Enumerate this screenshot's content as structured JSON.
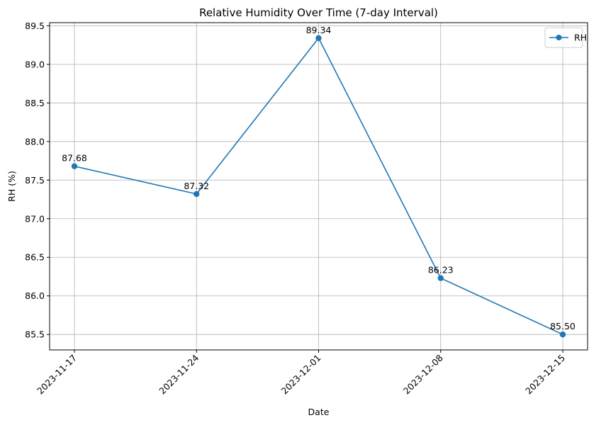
{
  "chart_data": {
    "type": "line",
    "title": "Relative Humidity Over Time (7-day Interval)",
    "xlabel": "Date",
    "ylabel": "RH (%)",
    "x": [
      "2023-11-17",
      "2023-11-24",
      "2023-12-01",
      "2023-12-08",
      "2023-12-15"
    ],
    "series": [
      {
        "name": "RH",
        "values": [
          87.68,
          87.32,
          89.34,
          86.23,
          85.5
        ],
        "labels": [
          "87.68",
          "87.32",
          "89.34",
          "86.23",
          "85.50"
        ],
        "color": "#1f77b4",
        "marker": "circle"
      }
    ],
    "ylim": [
      85.3,
      89.54
    ],
    "yticks": [
      85.5,
      86.0,
      86.5,
      87.0,
      87.5,
      88.0,
      88.5,
      89.0,
      89.5
    ],
    "ytick_labels": [
      "85.5",
      "86.0",
      "86.5",
      "87.0",
      "87.5",
      "88.0",
      "88.5",
      "89.0",
      "89.5"
    ],
    "grid": true,
    "legend": "top-right",
    "colors": {
      "line": "#1f77b4",
      "grid": "#b0b0b0",
      "axes": "#000000"
    }
  }
}
